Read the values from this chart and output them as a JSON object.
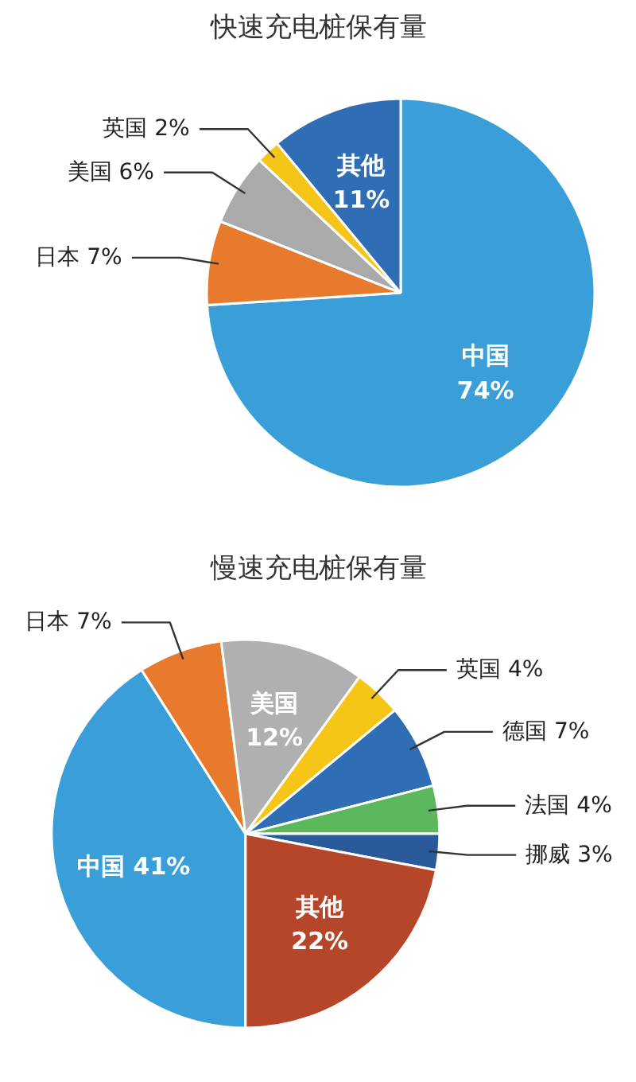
{
  "chart_data": [
    {
      "type": "pie",
      "title": "快速充电桩保有量",
      "categories": [
        "中国",
        "日本",
        "美国",
        "英国",
        "其他"
      ],
      "values": [
        74,
        7,
        6,
        2,
        11
      ],
      "value_labels": [
        "74%",
        "7%",
        "6%",
        "2%",
        "11%"
      ],
      "colors": [
        "#3a9fd8",
        "#e87a2e",
        "#aaaaaa",
        "#f5c518",
        "#2f6db5"
      ]
    },
    {
      "type": "pie",
      "title": "慢速充电桩保有量",
      "categories": [
        "中国",
        "日本",
        "美国",
        "英国",
        "德国",
        "法国",
        "挪威",
        "其他"
      ],
      "values": [
        41,
        7,
        12,
        4,
        7,
        4,
        3,
        22
      ],
      "value_labels": [
        "41%",
        "7%",
        "12%",
        "4%",
        "7%",
        "4%",
        "3%",
        "22%"
      ],
      "colors": [
        "#3a9fd8",
        "#e87a2e",
        "#b0b0b0",
        "#f5c518",
        "#2f6db5",
        "#5cb85c",
        "#2a5a9a",
        "#b5462a"
      ]
    }
  ]
}
